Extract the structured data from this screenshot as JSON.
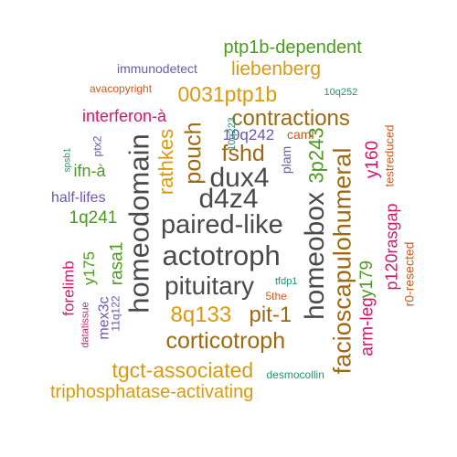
{
  "palette": {
    "gray": "#4a4a4a",
    "brown": "#9c6a12",
    "gold": "#d99a0e",
    "green": "#4c9a1e",
    "purple": "#6b5aa6",
    "magenta": "#d6166e",
    "orange": "#cf5a18",
    "teal": "#22936f"
  },
  "words": [
    {
      "text": "ptp1b-dependent",
      "color": "green"
    },
    {
      "text": "immunodetect",
      "color": "purple"
    },
    {
      "text": "liebenberg",
      "color": "gold"
    },
    {
      "text": "avacopyright",
      "color": "orange"
    },
    {
      "text": "0031ptp1b",
      "color": "gold"
    },
    {
      "text": "10q252",
      "color": "teal"
    },
    {
      "text": "interferon-à",
      "color": "magenta"
    },
    {
      "text": "contractions",
      "color": "brown"
    },
    {
      "text": "caml",
      "color": "orange"
    },
    {
      "text": "10q242",
      "color": "purple"
    },
    {
      "text": "10q223",
      "color": "teal"
    },
    {
      "text": "fshd",
      "color": "brown"
    },
    {
      "text": "testreduced",
      "color": "orange"
    },
    {
      "text": "spsb1",
      "color": "teal"
    },
    {
      "text": "ptx2",
      "color": "purple"
    },
    {
      "text": "ifn-à",
      "color": "green"
    },
    {
      "text": "rathkes",
      "color": "gold"
    },
    {
      "text": "pouch",
      "color": "brown"
    },
    {
      "text": "dux4",
      "color": "gray"
    },
    {
      "text": "plam",
      "color": "purple"
    },
    {
      "text": "3p243",
      "color": "green"
    },
    {
      "text": "facioscapulohumeral",
      "color": "brown"
    },
    {
      "text": "y160",
      "color": "magenta"
    },
    {
      "text": "half-lifes",
      "color": "purple"
    },
    {
      "text": "d4z4",
      "color": "gray"
    },
    {
      "text": "1q241",
      "color": "green"
    },
    {
      "text": "homeodomain",
      "color": "gray"
    },
    {
      "text": "paired-like",
      "color": "gray"
    },
    {
      "text": "homeobox",
      "color": "gray"
    },
    {
      "text": "p120rasgap",
      "color": "magenta"
    },
    {
      "text": "r0-resected",
      "color": "orange"
    },
    {
      "text": "actotroph",
      "color": "gray"
    },
    {
      "text": "forelimb",
      "color": "magenta"
    },
    {
      "text": "y175",
      "color": "green"
    },
    {
      "text": "rasa1",
      "color": "green"
    },
    {
      "text": "y179",
      "color": "green"
    },
    {
      "text": "arm-leg",
      "color": "magenta"
    },
    {
      "text": "pituitary",
      "color": "gray"
    },
    {
      "text": "tfdp1",
      "color": "teal"
    },
    {
      "text": "datatissue",
      "color": "magenta"
    },
    {
      "text": "mex3c",
      "color": "purple"
    },
    {
      "text": "11q122",
      "color": "purple"
    },
    {
      "text": "5the",
      "color": "orange"
    },
    {
      "text": "8q133",
      "color": "gold"
    },
    {
      "text": "pit-1",
      "color": "brown"
    },
    {
      "text": "corticotroph",
      "color": "brown"
    },
    {
      "text": "tgct-associated",
      "color": "gold"
    },
    {
      "text": "desmocollin",
      "color": "teal"
    },
    {
      "text": "triphosphatase-activating",
      "color": "gold"
    }
  ]
}
